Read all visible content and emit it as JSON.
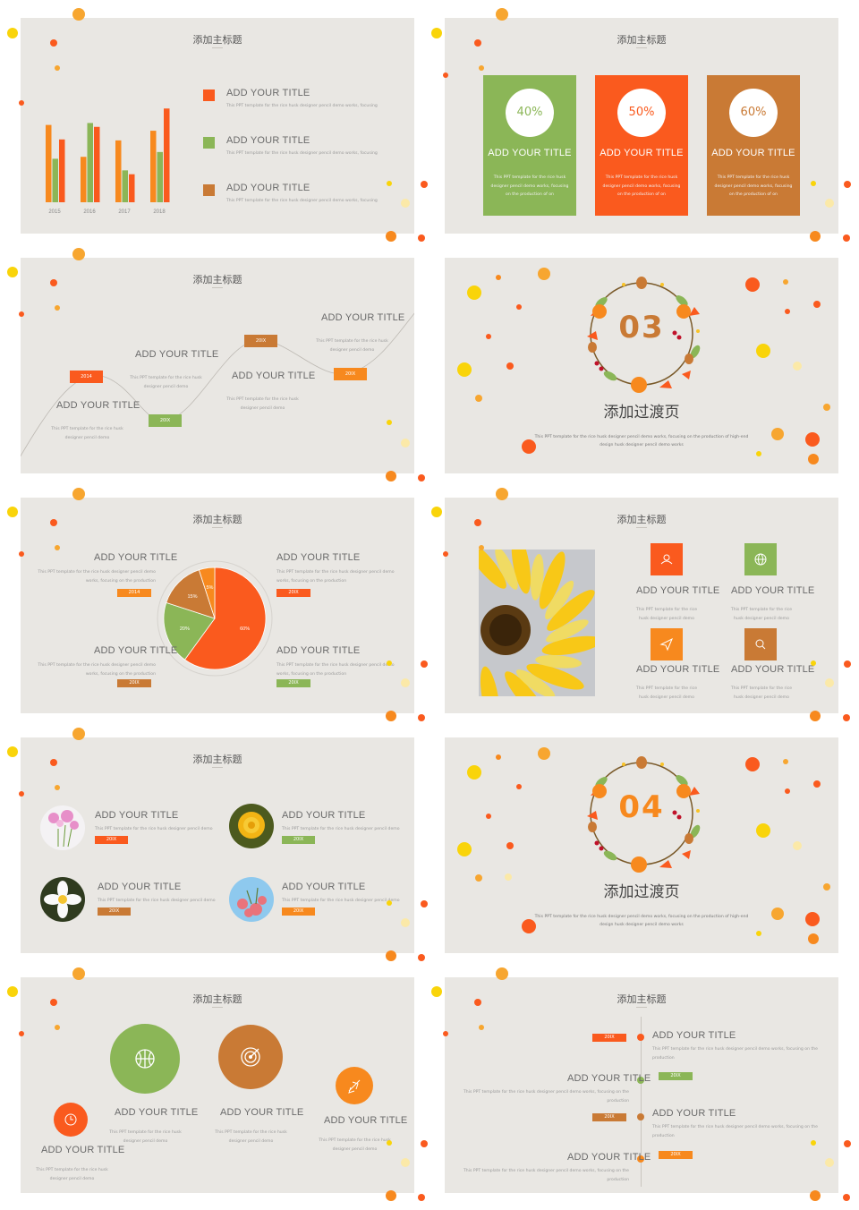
{
  "colors": {
    "orange_red": "#fa5a1e",
    "orange": "#f7891e",
    "green": "#8bb657",
    "brown": "#c97a35",
    "yellow": "#f9d40a",
    "bg": "#e9e7e3"
  },
  "subtitle": "添加主标题",
  "item_title": "ADD YOUR TITLE",
  "desc_short": "This PPT template for the rice husk designer pencil demo",
  "desc_long": "This PPT template for the rice husk designer pencil demo works, focusing",
  "desc_prod": "This PPT template for the rice husk designer pencil demo works, focusing on the production",
  "slide1": {
    "chart_data": {
      "type": "bar",
      "categories": [
        "2015",
        "2016",
        "2017",
        "2018"
      ],
      "series": [
        {
          "values": [
            80,
            47,
            64,
            74
          ]
        },
        {
          "values": [
            45,
            82,
            33,
            52
          ]
        },
        {
          "values": [
            65,
            78,
            29,
            97
          ]
        }
      ],
      "ylim": [
        0,
        100
      ]
    },
    "legend": [
      {
        "color": "#fa5a1e"
      },
      {
        "color": "#8bb657"
      },
      {
        "color": "#c97a35"
      }
    ]
  },
  "slide2": {
    "cards": [
      {
        "pct": "40%",
        "color": "#8bb657",
        "desc": "This PPT template for the rice husk designer pencil demo works, focusing on the production of on"
      },
      {
        "pct": "50%",
        "color": "#fa5a1e",
        "desc": "This PPT template for the rice husk designer pencil demo works, focusing on the production of on"
      },
      {
        "pct": "60%",
        "color": "#c97a35",
        "desc": "This PPT template for the rice husk designer pencil demo works, focusing on the production of on"
      }
    ]
  },
  "slide3": {
    "tags": [
      "2014",
      "20IX",
      "20IX",
      "20IX"
    ]
  },
  "transition1": {
    "number": "03",
    "heading": "添加过渡页",
    "desc": "This PPT template for the rice husk designer pencil demo works, focusing on the production of high-end design husk designer pencil demo works"
  },
  "slide5": {
    "chart_data": {
      "type": "pie",
      "values": [
        60,
        20,
        15,
        5
      ],
      "labels": [
        "60%",
        "20%",
        "15%",
        "5%"
      ]
    },
    "tags": [
      "2014",
      "20IX",
      "20IX",
      "20IX"
    ]
  },
  "slide6": {
    "icons": [
      "user-icon",
      "globe-icon",
      "send-icon",
      "search-icon"
    ]
  },
  "slide7": {
    "tags": [
      "20IX",
      "20IX",
      "20IX",
      "20IX"
    ]
  },
  "transition2": {
    "number": "04",
    "heading": "添加过渡页",
    "desc": "This PPT template for the rice husk designer pencil demo works, focusing on the production of high-end design husk designer pencil demo works"
  },
  "slide9": {
    "icons": [
      "clock-icon",
      "basketball-icon",
      "target-icon",
      "plane-icon"
    ]
  },
  "slide10": {
    "tags": [
      "20IX",
      "20IX",
      "20IX",
      "20IX"
    ]
  }
}
